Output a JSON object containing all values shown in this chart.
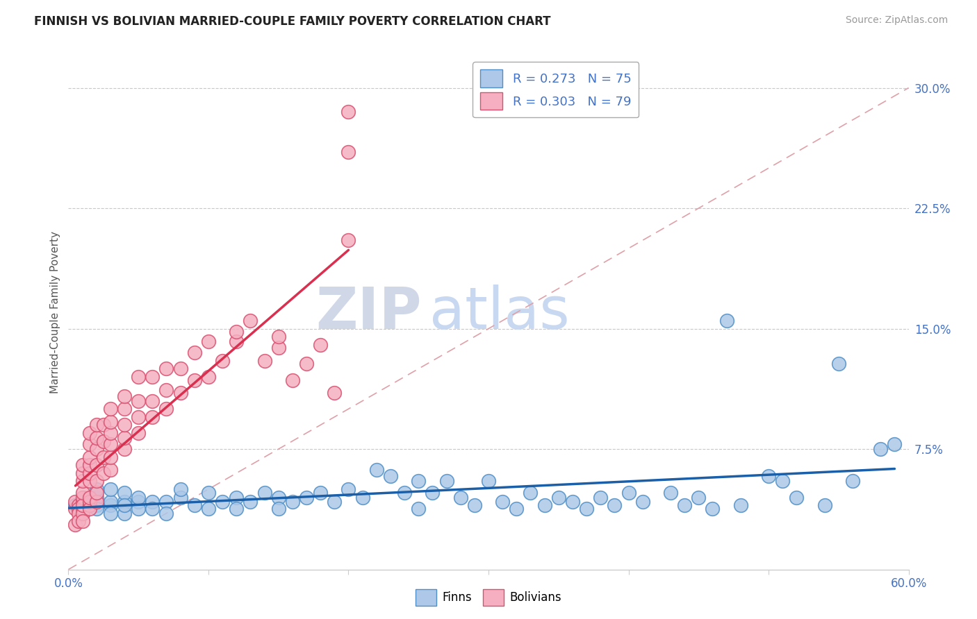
{
  "title": "FINNISH VS BOLIVIAN MARRIED-COUPLE FAMILY POVERTY CORRELATION CHART",
  "source": "Source: ZipAtlas.com",
  "ylabel": "Married-Couple Family Poverty",
  "xlim": [
    0.0,
    0.6
  ],
  "ylim": [
    0.0,
    0.32
  ],
  "yticks_right": [
    0.075,
    0.15,
    0.225,
    0.3
  ],
  "yticklabels_right": [
    "7.5%",
    "15.0%",
    "22.5%",
    "30.0%"
  ],
  "finn_color": "#adc8e8",
  "bolivian_color": "#f5afc0",
  "finn_edge_color": "#4f8fc7",
  "bolivian_edge_color": "#d95070",
  "trend_finn_color": "#1a5fa8",
  "trend_bolivian_color": "#d93050",
  "R_finn": 0.273,
  "N_finn": 75,
  "R_bolivian": 0.303,
  "N_bolivian": 79,
  "legend_label_finn": "Finns",
  "legend_label_bolivian": "Bolivians",
  "watermark_zip": "ZIP",
  "watermark_atlas": "atlas",
  "finn_x": [
    0.005,
    0.01,
    0.01,
    0.02,
    0.02,
    0.02,
    0.02,
    0.03,
    0.03,
    0.03,
    0.03,
    0.04,
    0.04,
    0.04,
    0.04,
    0.05,
    0.05,
    0.05,
    0.06,
    0.06,
    0.07,
    0.07,
    0.08,
    0.08,
    0.09,
    0.1,
    0.1,
    0.11,
    0.12,
    0.12,
    0.13,
    0.14,
    0.15,
    0.15,
    0.16,
    0.17,
    0.18,
    0.19,
    0.2,
    0.21,
    0.22,
    0.23,
    0.24,
    0.25,
    0.25,
    0.26,
    0.27,
    0.28,
    0.29,
    0.3,
    0.31,
    0.32,
    0.33,
    0.34,
    0.35,
    0.36,
    0.37,
    0.38,
    0.39,
    0.4,
    0.41,
    0.43,
    0.44,
    0.45,
    0.46,
    0.47,
    0.48,
    0.5,
    0.51,
    0.52,
    0.54,
    0.55,
    0.56,
    0.58,
    0.59
  ],
  "finn_y": [
    0.04,
    0.035,
    0.045,
    0.04,
    0.045,
    0.05,
    0.038,
    0.04,
    0.042,
    0.05,
    0.035,
    0.042,
    0.048,
    0.035,
    0.04,
    0.042,
    0.038,
    0.045,
    0.042,
    0.038,
    0.042,
    0.035,
    0.045,
    0.05,
    0.04,
    0.048,
    0.038,
    0.042,
    0.045,
    0.038,
    0.042,
    0.048,
    0.045,
    0.038,
    0.042,
    0.045,
    0.048,
    0.042,
    0.05,
    0.045,
    0.062,
    0.058,
    0.048,
    0.055,
    0.038,
    0.048,
    0.055,
    0.045,
    0.04,
    0.055,
    0.042,
    0.038,
    0.048,
    0.04,
    0.045,
    0.042,
    0.038,
    0.045,
    0.04,
    0.048,
    0.042,
    0.048,
    0.04,
    0.045,
    0.038,
    0.155,
    0.04,
    0.058,
    0.055,
    0.045,
    0.04,
    0.128,
    0.055,
    0.075,
    0.078
  ],
  "bolivian_x": [
    0.005,
    0.005,
    0.005,
    0.007,
    0.007,
    0.007,
    0.007,
    0.01,
    0.01,
    0.01,
    0.01,
    0.01,
    0.01,
    0.01,
    0.01,
    0.01,
    0.01,
    0.015,
    0.015,
    0.015,
    0.015,
    0.015,
    0.015,
    0.015,
    0.015,
    0.015,
    0.015,
    0.02,
    0.02,
    0.02,
    0.02,
    0.02,
    0.02,
    0.02,
    0.025,
    0.025,
    0.025,
    0.025,
    0.03,
    0.03,
    0.03,
    0.03,
    0.03,
    0.03,
    0.04,
    0.04,
    0.04,
    0.04,
    0.04,
    0.05,
    0.05,
    0.05,
    0.05,
    0.06,
    0.06,
    0.06,
    0.07,
    0.07,
    0.07,
    0.08,
    0.08,
    0.09,
    0.09,
    0.1,
    0.1,
    0.11,
    0.12,
    0.12,
    0.13,
    0.14,
    0.15,
    0.15,
    0.16,
    0.17,
    0.18,
    0.19,
    0.2,
    0.2,
    0.2
  ],
  "bolivian_y": [
    0.038,
    0.042,
    0.028,
    0.04,
    0.038,
    0.035,
    0.03,
    0.042,
    0.038,
    0.035,
    0.03,
    0.045,
    0.04,
    0.048,
    0.055,
    0.06,
    0.065,
    0.04,
    0.042,
    0.038,
    0.045,
    0.055,
    0.06,
    0.065,
    0.07,
    0.078,
    0.085,
    0.042,
    0.048,
    0.055,
    0.065,
    0.075,
    0.082,
    0.09,
    0.06,
    0.07,
    0.08,
    0.09,
    0.062,
    0.07,
    0.078,
    0.085,
    0.092,
    0.1,
    0.075,
    0.082,
    0.09,
    0.1,
    0.108,
    0.085,
    0.095,
    0.105,
    0.12,
    0.095,
    0.105,
    0.12,
    0.1,
    0.112,
    0.125,
    0.11,
    0.125,
    0.118,
    0.135,
    0.12,
    0.142,
    0.13,
    0.142,
    0.148,
    0.155,
    0.13,
    0.138,
    0.145,
    0.118,
    0.128,
    0.14,
    0.11,
    0.205,
    0.26,
    0.285
  ]
}
